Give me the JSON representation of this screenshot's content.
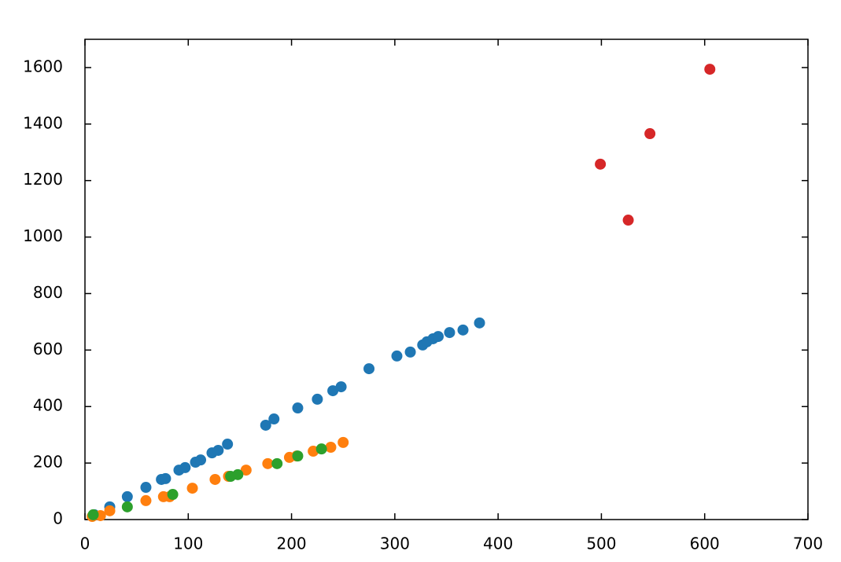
{
  "chart_data": {
    "type": "scatter",
    "xlim": [
      0,
      700
    ],
    "xticks": [
      0,
      100,
      200,
      300,
      400,
      500,
      600,
      700
    ],
    "ylim": [
      0,
      1700
    ],
    "yticks": [
      0,
      200,
      400,
      600,
      800,
      1000,
      1200,
      1400,
      1600
    ],
    "grid": false,
    "series": [
      {
        "color": "#1f77b4",
        "x": [
          9,
          24,
          41,
          59,
          74,
          78,
          91,
          97,
          107,
          112,
          123,
          129,
          138,
          175,
          183,
          206,
          225,
          240,
          248,
          275,
          302,
          315,
          327,
          331,
          337,
          342,
          353,
          366,
          382
        ],
        "values": [
          17,
          45,
          81,
          114,
          142,
          145,
          175,
          184,
          203,
          211,
          236,
          245,
          267,
          334,
          356,
          395,
          426,
          456,
          470,
          534,
          579,
          593,
          618,
          629,
          640,
          648,
          662,
          671,
          696
        ]
      },
      {
        "color": "#ff7f0e",
        "x": [
          7,
          15,
          24,
          59,
          76,
          82,
          104,
          126,
          139,
          156,
          177,
          198,
          205,
          221,
          238,
          250
        ],
        "values": [
          11,
          14,
          31,
          67,
          81,
          81,
          111,
          142,
          153,
          175,
          198,
          220,
          225,
          242,
          256,
          273
        ]
      },
      {
        "color": "#2ca02c",
        "x": [
          8,
          41,
          85,
          141,
          148,
          186,
          206,
          229
        ],
        "values": [
          17,
          45,
          89,
          153,
          159,
          198,
          225,
          250
        ]
      },
      {
        "color": "#d62728",
        "x": [
          499,
          547,
          526,
          605
        ],
        "values": [
          1258,
          1366,
          1060,
          1594
        ]
      }
    ]
  }
}
